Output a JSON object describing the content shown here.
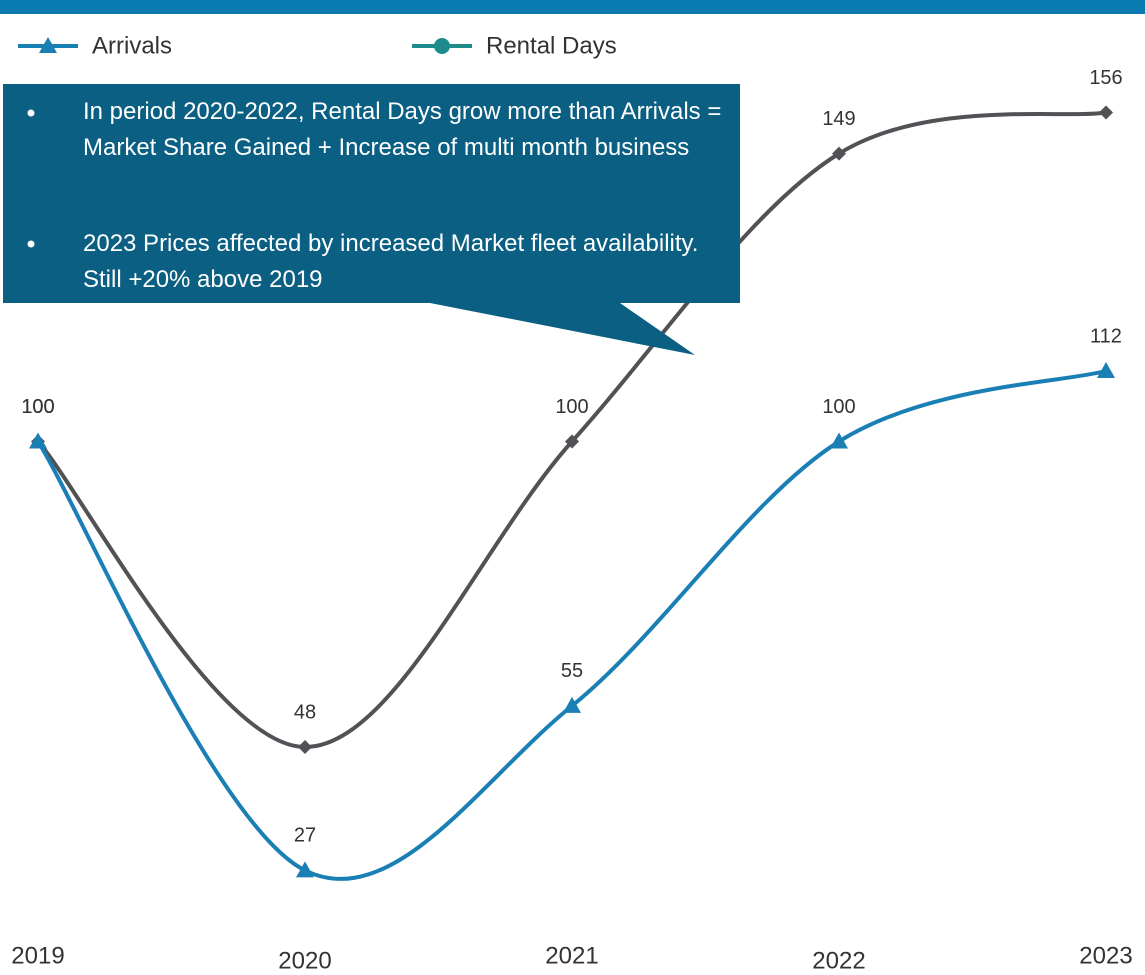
{
  "chart_data": {
    "type": "line",
    "categories": [
      "2019",
      "2020",
      "2021",
      "2022",
      "2023"
    ],
    "series": [
      {
        "name": "Arrivals",
        "color": "#1a7fb5",
        "marker": "triangle",
        "values": [
          100,
          27,
          55,
          100,
          112
        ]
      },
      {
        "name": "Rental Days",
        "color": "#505256",
        "marker": "diamond",
        "legend_color": "#1e8c8c",
        "legend_marker": "circle",
        "values": [
          100,
          48,
          100,
          149,
          156
        ]
      }
    ],
    "ylim": [
      0,
      160
    ],
    "smooth": true,
    "annotations": [
      "In period 2020-2022, Rental Days grow more than Arrivals = Market Share Gained + Increase of multi month business",
      "2023 Prices affected by increased Market fleet availability. Still +20% above 2019"
    ]
  }
}
